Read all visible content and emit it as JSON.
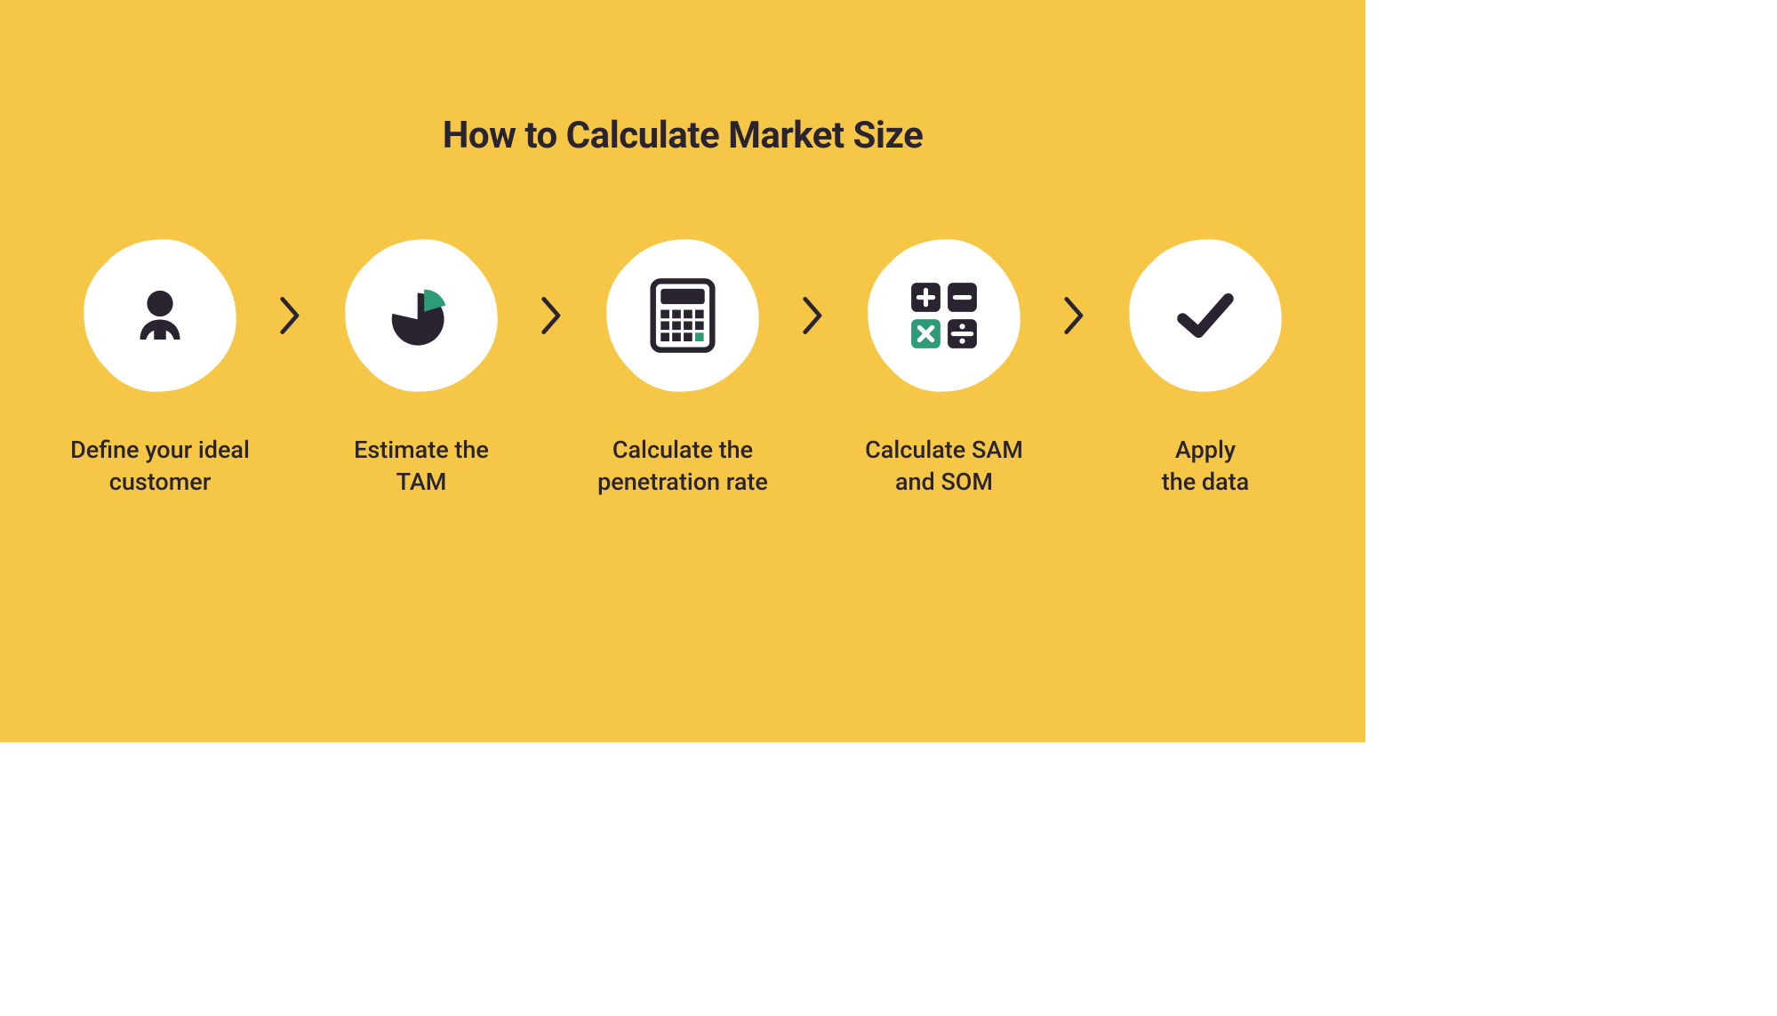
{
  "infographic": {
    "type": "infographic",
    "title": "How to Calculate Market Size",
    "background_color": "#f6c747",
    "circle_color": "#ffffff",
    "text_color": "#2a2430",
    "accent_color": "#2e9b78",
    "title_fontsize": 42,
    "label_fontsize": 27,
    "circle_diameter": 170,
    "steps": [
      {
        "label": "Define your ideal\ncustomer",
        "icon": "person"
      },
      {
        "label": "Estimate the\nTAM",
        "icon": "pie"
      },
      {
        "label": "Calculate the\npenetration rate",
        "icon": "calculator"
      },
      {
        "label": "Calculate SAM\nand SOM",
        "icon": "operators"
      },
      {
        "label": "Apply\nthe data",
        "icon": "check"
      }
    ]
  }
}
